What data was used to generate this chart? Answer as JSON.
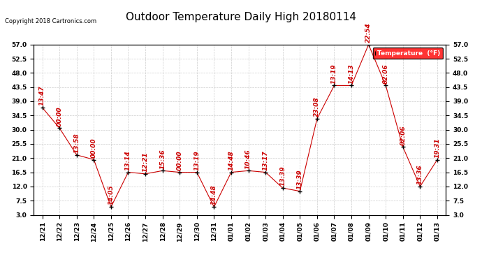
{
  "title": "Outdoor Temperature Daily High 20180114",
  "copyright": "Copyright 2018 Cartronics.com",
  "legend_label": "Temperature  (°F)",
  "x_labels": [
    "12/21",
    "12/22",
    "12/23",
    "12/24",
    "12/25",
    "12/26",
    "12/27",
    "12/28",
    "12/29",
    "12/30",
    "12/31",
    "01/01",
    "01/02",
    "01/03",
    "01/04",
    "01/05",
    "01/06",
    "01/07",
    "01/08",
    "01/09",
    "01/10",
    "01/11",
    "01/12",
    "01/13"
  ],
  "y_values": [
    37.0,
    30.5,
    22.0,
    20.5,
    5.5,
    16.5,
    16.0,
    17.0,
    16.5,
    16.5,
    5.5,
    16.5,
    17.0,
    16.5,
    11.5,
    10.5,
    33.5,
    44.0,
    44.0,
    57.0,
    44.0,
    24.5,
    12.0,
    20.5
  ],
  "point_labels": [
    "13:47",
    "00:00",
    "13:58",
    "00:00",
    "14:05",
    "13:14",
    "12:21",
    "15:36",
    "00:00",
    "13:19",
    "14:48",
    "14:48",
    "10:46",
    "13:17",
    "13:39",
    "13:39",
    "23:08",
    "13:19",
    "14:13",
    "22:54",
    "02:06",
    "02:06",
    "13:36",
    "19:31"
  ],
  "line_color": "#cc0000",
  "marker_color": "#000000",
  "grid_color": "#cccccc",
  "bg_color": "#ffffff",
  "legend_bg": "#ff0000",
  "legend_text_color": "#ffffff",
  "ylim": [
    3.0,
    57.0
  ],
  "yticks": [
    3.0,
    7.5,
    12.0,
    16.5,
    21.0,
    25.5,
    30.0,
    34.5,
    39.0,
    43.5,
    48.0,
    52.5,
    57.0
  ],
  "title_fontsize": 11,
  "label_fontsize": 6.5,
  "annotation_fontsize": 6.5,
  "copyright_fontsize": 6
}
